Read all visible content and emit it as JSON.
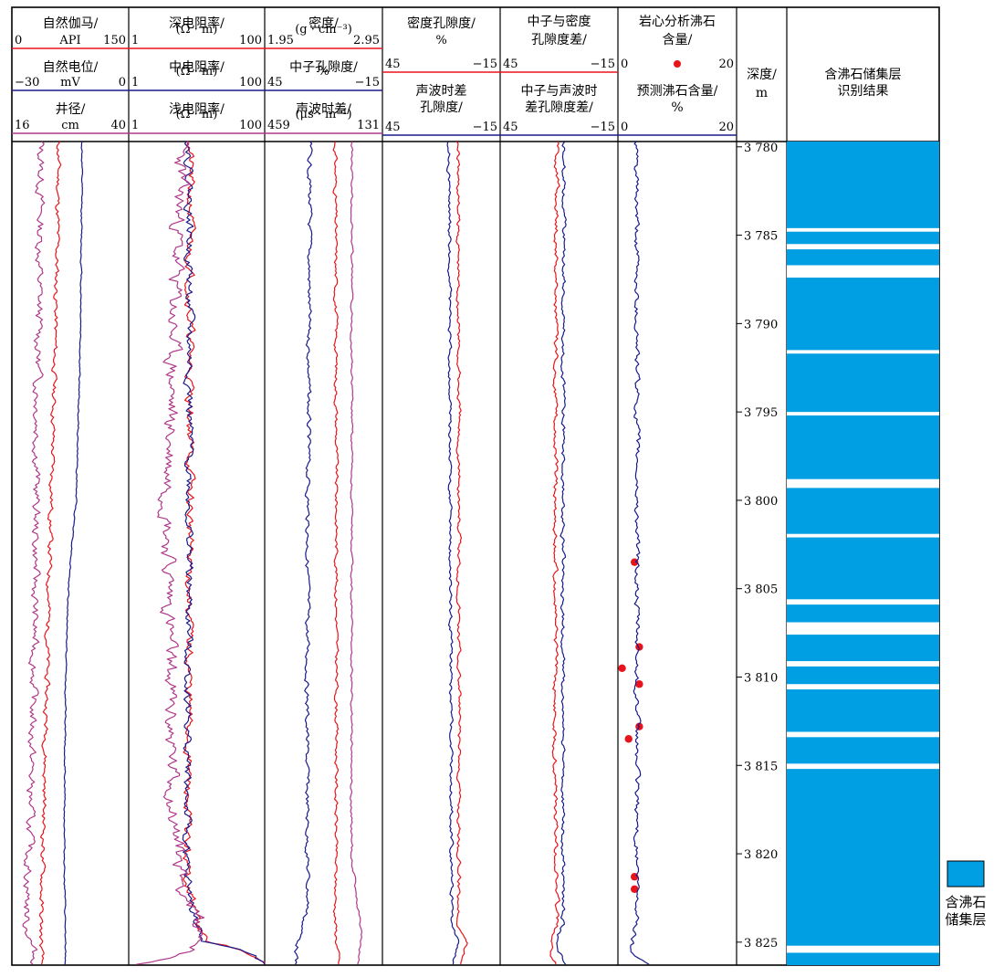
{
  "chart_data": {
    "type": "line",
    "depth_axis": {
      "title": "深度/",
      "unit": "m",
      "range": [
        3779.7,
        3826.3
      ],
      "ticks": [
        3780,
        3785,
        3790,
        3795,
        3800,
        3805,
        3810,
        3815,
        3820,
        3825
      ],
      "tick_labels": [
        "3 780",
        "3 785",
        "3 790",
        "3 795",
        "3 800",
        "3 805",
        "3 810",
        "3 815",
        "3 820",
        "3 825"
      ]
    },
    "tracks": [
      {
        "id": "t1",
        "curves": [
          {
            "key": "gr",
            "name": "自然伽马/",
            "unit": "API",
            "min_label": "0",
            "max_label": "150",
            "range": [
              0,
              150
            ],
            "color": "#e8141b",
            "base_depth": [
              3780,
              3786,
              3792,
              3798,
              3804,
              3810,
              3816,
              3820,
              3824,
              3826.3
            ],
            "base_value": [
              60,
              58,
              55,
              52,
              48,
              45,
              42,
              40,
              37,
              38
            ],
            "amp": 2.5,
            "seed": 11
          },
          {
            "key": "sp",
            "name": "自然电位/",
            "unit": "mV",
            "min_label": "−30",
            "max_label": "0",
            "range": [
              -30,
              0
            ],
            "color": "#1a1a8c",
            "base_depth": [
              3780,
              3790,
              3800,
              3805,
              3810,
              3815,
              3820,
              3826.3
            ],
            "base_value": [
              -12,
              -12.3,
              -13.5,
              -15.5,
              -16.2,
              -16.4,
              -16.5,
              -16.3
            ],
            "amp": 0.15,
            "seed": 12
          },
          {
            "key": "cal",
            "name": "井径/",
            "unit": "cm",
            "min_label": "16",
            "max_label": "40",
            "range": [
              16,
              40
            ],
            "color": "#b0388a",
            "base_depth": [
              3780,
              3790,
              3800,
              3810,
              3820,
              3824,
              3826.3
            ],
            "base_value": [
              22,
              21.5,
              21,
              20.5,
              19.5,
              19,
              21
            ],
            "amp": 0.7,
            "seed": 13
          }
        ]
      },
      {
        "id": "t2",
        "curves": [
          {
            "key": "rd",
            "name": "深电阻率/",
            "unit": "(Ω · m)",
            "min_label": "1",
            "max_label": "100",
            "range": [
              1,
              100
            ],
            "log": true,
            "color": "#e8141b",
            "base_depth": [
              3780,
              3800,
              3815,
              3821,
              3823,
              3825,
              3826.3
            ],
            "base_value": [
              8,
              8,
              7.5,
              7,
              9,
              13,
              100
            ],
            "amp": 0.05,
            "seed": 21
          },
          {
            "key": "rm",
            "name": "中电阻率/",
            "unit": "(Ω · m)",
            "min_label": "1",
            "max_label": "100",
            "range": [
              1,
              100
            ],
            "log": true,
            "color": "#1a1a8c",
            "base_depth": [
              3780,
              3800,
              3815,
              3821,
              3823,
              3825,
              3826.3
            ],
            "base_value": [
              7.8,
              7.8,
              7.3,
              6.8,
              8.5,
              12,
              100
            ],
            "amp": 0.05,
            "seed": 22
          },
          {
            "key": "rs",
            "name": "浅电阻率/",
            "unit": "(Ω · m)",
            "min_label": "1",
            "max_label": "100",
            "range": [
              1,
              100
            ],
            "log": true,
            "color": "#b0388a",
            "base_depth": [
              3780,
              3790,
              3800,
              3810,
              3818,
              3822,
              3825,
              3826.3
            ],
            "base_value": [
              6,
              4.5,
              3.8,
              4,
              4.5,
              6.5,
              12,
              1.1
            ],
            "amp": 0.09,
            "seed": 23
          }
        ]
      },
      {
        "id": "t3",
        "curves": [
          {
            "key": "den",
            "name": "密度/",
            "unit": "(g · cm⁻³)",
            "min_label": "1.95",
            "max_label": "2.95",
            "range": [
              1.95,
              2.95
            ],
            "color": "#e8141b",
            "base_depth": [
              3780,
              3800,
              3815,
              3824,
              3826.3
            ],
            "base_value": [
              2.55,
              2.56,
              2.56,
              2.55,
              2.58
            ],
            "amp": 0.012,
            "seed": 31
          },
          {
            "key": "cnl",
            "name": "中子孔隙度/",
            "unit": "%",
            "min_label": "45",
            "max_label": "−15",
            "range": [
              45,
              -15
            ],
            "color": "#1a1a8c",
            "base_depth": [
              3780,
              3800,
              3815,
              3823,
              3824.6,
              3826.3
            ],
            "base_value": [
              22,
              23,
              23.5,
              23,
              27,
              30
            ],
            "amp": 0.9,
            "seed": 32
          },
          {
            "key": "ac",
            "name": "声波时差/",
            "unit": "(μs · m⁻¹)",
            "min_label": "459",
            "max_label": "131",
            "range": [
              459,
              131
            ],
            "color": "#b0388a",
            "base_depth": [
              3780,
              3800,
              3820,
              3824.6,
              3826.3
            ],
            "base_value": [
              216,
              217,
              217,
              190,
              200
            ],
            "amp": 2.5,
            "seed": 33
          }
        ]
      },
      {
        "id": "t4",
        "curves": [
          {
            "key": "phid",
            "name": "密度孔隙度/",
            "unit": "%",
            "min_label": "45",
            "max_label": "−15",
            "range": [
              45,
              -15
            ],
            "color": "#e8141b",
            "base_depth": [
              3780,
              3800,
              3815,
              3824,
              3825,
              3826.3
            ],
            "base_value": [
              6.5,
              6,
              6,
              6,
              2,
              5
            ],
            "amp": 0.8,
            "seed": 41
          },
          {
            "key": "phis",
            "name": "声波时差孔隙度/",
            "unit": "%",
            "min_label": "45",
            "max_label": "−15",
            "range": [
              45,
              -15
            ],
            "color": "#1a1a8c",
            "base_depth": [
              3780,
              3800,
              3815,
              3824,
              3825,
              3826.3
            ],
            "base_value": [
              11,
              10.5,
              10,
              9.5,
              6,
              9
            ],
            "amp": 0.7,
            "seed": 42
          }
        ]
      },
      {
        "id": "t5",
        "curves": [
          {
            "key": "dnd",
            "name": "中子与密度孔隙度差/",
            "unit": "%",
            "min_label": "45",
            "max_label": "−15",
            "range": [
              45,
              -15
            ],
            "color": "#e8141b",
            "base_depth": [
              3780,
              3800,
              3815,
              3824,
              3825,
              3826.3
            ],
            "base_value": [
              16,
              17,
              17,
              16,
              20,
              17
            ],
            "amp": 0.9,
            "seed": 51
          },
          {
            "key": "dns",
            "name": "中子与声波时差孔隙度差/",
            "unit": "%",
            "min_label": "45",
            "max_label": "−15",
            "range": [
              45,
              -15
            ],
            "color": "#1a1a8c",
            "base_depth": [
              3780,
              3800,
              3815,
              3824,
              3825,
              3826.3
            ],
            "base_value": [
              12.5,
              13,
              13,
              13,
              17,
              11
            ],
            "amp": 0.8,
            "seed": 52
          }
        ]
      },
      {
        "id": "t6",
        "curves": [
          {
            "key": "core",
            "name": "岩心分析沸石含量/",
            "unit": "%",
            "min_label": "0",
            "max_label": "20",
            "range": [
              0,
              20
            ],
            "color": "#e8141b",
            "style": "points",
            "depth": [
              3803.5,
              3808.3,
              3809.5,
              3810.4,
              3812.8,
              3813.5,
              3821.3,
              3822.0
            ],
            "values": [
              2.8,
              3.6,
              0.7,
              3.6,
              3.6,
              1.8,
              2.8,
              2.8
            ]
          },
          {
            "key": "pred",
            "name": "预测沸石含量/",
            "unit": "%",
            "min_label": "0",
            "max_label": "20",
            "range": [
              0,
              20
            ],
            "color": "#1a1a8c",
            "base_depth": [
              3780,
              3790,
              3800,
              3810,
              3818,
              3824,
              3825.5,
              3826.3
            ],
            "base_value": [
              3.0,
              3.2,
              3.2,
              3.2,
              3.2,
              3.2,
              2.0,
              5.5
            ],
            "amp": 0.35,
            "seed": 61
          }
        ]
      }
    ],
    "result_track": {
      "title": "含沸石储集层识别结果",
      "zone_color": "#009ee3",
      "zone_top": 3779.7,
      "zone_bottom": 3826.3,
      "gap_intervals": [
        [
          3784.6,
          3784.8
        ],
        [
          3785.5,
          3785.8
        ],
        [
          3786.7,
          3787.4
        ],
        [
          3791.5,
          3791.7
        ],
        [
          3795.0,
          3795.2
        ],
        [
          3798.8,
          3799.3
        ],
        [
          3801.9,
          3802.1
        ],
        [
          3805.6,
          3805.9
        ],
        [
          3806.9,
          3807.6
        ],
        [
          3809.1,
          3809.4
        ],
        [
          3810.4,
          3810.7
        ],
        [
          3813.1,
          3813.4
        ],
        [
          3814.9,
          3815.2
        ],
        [
          3825.2,
          3825.6
        ]
      ]
    },
    "legend": [
      {
        "label": "含沸石储集层",
        "color": "#009ee3"
      }
    ]
  }
}
